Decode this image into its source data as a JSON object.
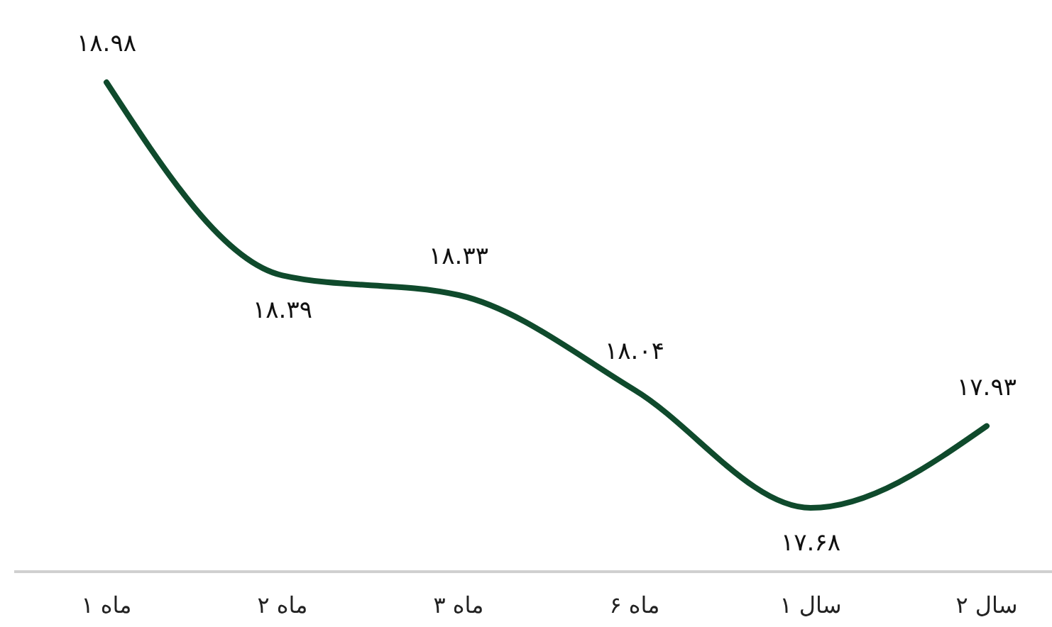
{
  "chart_data": {
    "type": "line",
    "categories": [
      "ماه ۱",
      "ماه ۲",
      "ماه ۳",
      "ماه ۶",
      "سال ۱",
      "سال ۲"
    ],
    "series": [
      {
        "color": "#0f4a2c",
        "values": [
          18.98,
          18.39,
          18.33,
          18.04,
          17.68,
          17.93
        ],
        "value_labels": [
          "۱۸.۹۸",
          "۱۸.۳۹",
          "۱۸.۳۳",
          "۱۸.۰۴",
          "۱۷.۶۸",
          "۱۷.۹۳"
        ]
      }
    ],
    "marker": "none",
    "line_style": "solid"
  }
}
